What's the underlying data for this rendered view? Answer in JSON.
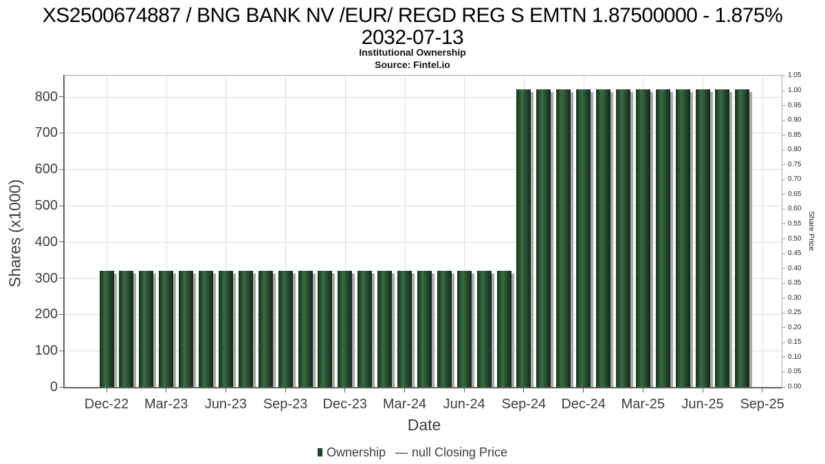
{
  "header": {
    "title_line1": "XS2500674887 / BNG BANK NV /EUR/ REGD REG S EMTN 1.87500000 - 1.875%",
    "title_line2": "2032-07-13",
    "subtitle": "Institutional Ownership",
    "source": "Source: Fintel.io"
  },
  "axes": {
    "left": {
      "label": "Shares (x1000)",
      "ticks": [
        "0",
        "100",
        "200",
        "300",
        "400",
        "500",
        "600",
        "700",
        "800"
      ]
    },
    "right": {
      "label": "Share Price",
      "ticks": [
        "0.00",
        "0.05",
        "0.10",
        "0.15",
        "0.20",
        "0.25",
        "0.30",
        "0.35",
        "0.40",
        "0.45",
        "0.50",
        "0.55",
        "0.60",
        "0.65",
        "0.70",
        "0.75",
        "0.80",
        "0.85",
        "0.90",
        "0.95",
        "1.00",
        "1.05"
      ]
    },
    "x": {
      "label": "Date",
      "ticks": [
        "Dec-22",
        "Mar-23",
        "Jun-23",
        "Sep-23",
        "Dec-23",
        "Mar-24",
        "Jun-24",
        "Sep-24",
        "Dec-24",
        "Mar-25",
        "Jun-25",
        "Sep-25"
      ]
    }
  },
  "legend": {
    "ownership_label": "Ownership",
    "dash": "—",
    "price_label": "null Closing Price"
  },
  "colors": {
    "bar_dark": "#15311b",
    "bar_highlight": "#3a6b43",
    "bar_shadow": "#a9a9a9",
    "grid": "#dcdcdc",
    "spine_dark": "#5f5f5f",
    "spine_light": "#a6a6a6",
    "tick_text": "#3c3c3c"
  },
  "chart_data": {
    "type": "bar",
    "title": "XS2500674887 / BNG BANK NV /EUR/ REGD REG S EMTN 1.87500000 - 1.875% 2032-07-13",
    "subtitle": "Institutional Ownership",
    "source": "Source: Fintel.io",
    "xlabel": "Date",
    "ylabel_left": "Shares (x1000)",
    "ylabel_right": "Share Price",
    "x": [
      "Dec-22",
      "Jan-23",
      "Feb-23",
      "Mar-23",
      "Apr-23",
      "May-23",
      "Jun-23",
      "Jul-23",
      "Aug-23",
      "Sep-23",
      "Oct-23",
      "Nov-23",
      "Dec-23",
      "Jan-24",
      "Feb-24",
      "Mar-24",
      "Apr-24",
      "May-24",
      "Jun-24",
      "Jul-24",
      "Aug-24",
      "Sep-24",
      "Oct-24",
      "Nov-24",
      "Dec-24",
      "Jan-25",
      "Feb-25",
      "Mar-25",
      "Apr-25",
      "May-25",
      "Jun-25",
      "Jul-25",
      "Aug-25"
    ],
    "series": [
      {
        "name": "Ownership",
        "type": "bar",
        "values": [
          320,
          320,
          320,
          320,
          320,
          320,
          320,
          320,
          320,
          320,
          320,
          320,
          320,
          320,
          320,
          320,
          320,
          320,
          320,
          320,
          320,
          820,
          820,
          820,
          820,
          820,
          820,
          820,
          820,
          820,
          820,
          820,
          820
        ]
      },
      {
        "name": "null Closing Price",
        "type": "line",
        "values": []
      }
    ],
    "ylim_left": [
      0,
      860
    ],
    "ylim_right": [
      0,
      1.055
    ],
    "x_tick_labels": [
      "Dec-22",
      "Mar-23",
      "Jun-23",
      "Sep-23",
      "Dec-23",
      "Mar-24",
      "Jun-24",
      "Sep-24",
      "Dec-24",
      "Mar-25",
      "Jun-25",
      "Sep-25"
    ],
    "grid": true,
    "legend_position": "bottom"
  }
}
